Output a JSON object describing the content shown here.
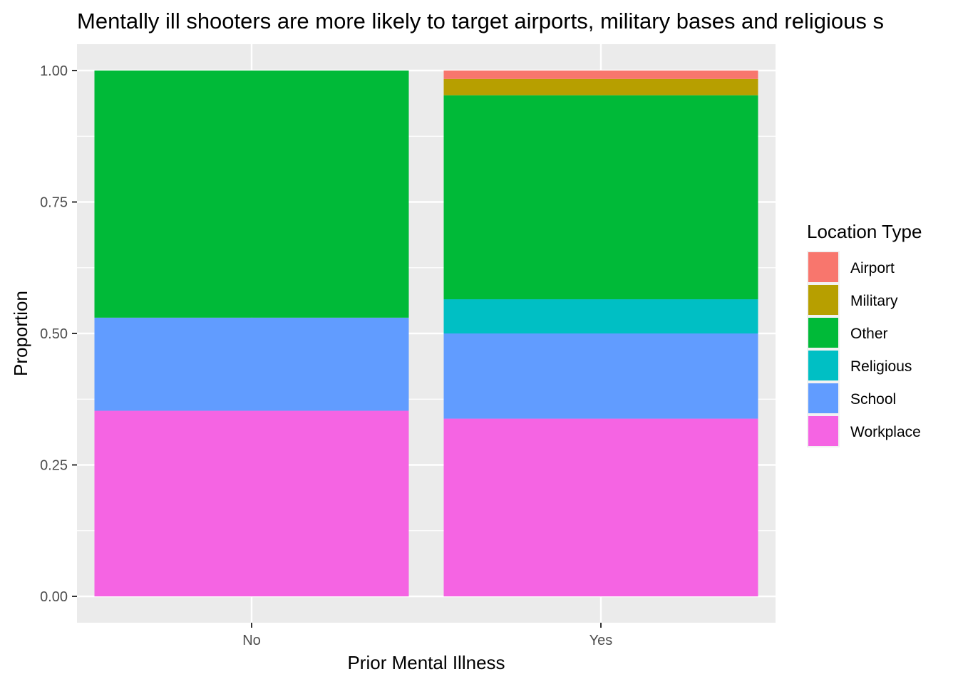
{
  "chart_data": {
    "type": "bar",
    "stacked": true,
    "title": "Mentally ill shooters are more likely to target airports, military bases and religious s",
    "xlabel": "Prior Mental Illness",
    "ylabel": "Proportion",
    "ylim": [
      0,
      1
    ],
    "yticks": [
      "0.00",
      "0.25",
      "0.50",
      "0.75",
      "1.00"
    ],
    "categories": [
      "No",
      "Yes"
    ],
    "series": [
      {
        "name": "Workplace",
        "color": "#F564E3",
        "values": [
          0.353,
          0.338
        ]
      },
      {
        "name": "School",
        "color": "#619CFF",
        "values": [
          0.177,
          0.162
        ]
      },
      {
        "name": "Religious",
        "color": "#00BFC4",
        "values": [
          0.0,
          0.065
        ]
      },
      {
        "name": "Other",
        "color": "#00BA38",
        "values": [
          0.47,
          0.388
        ]
      },
      {
        "name": "Military",
        "color": "#B79F00",
        "values": [
          0.0,
          0.031
        ]
      },
      {
        "name": "Airport",
        "color": "#F8766D",
        "values": [
          0.0,
          0.016
        ]
      }
    ],
    "legend": {
      "title": "Location Type",
      "position": "right",
      "entries": [
        "Airport",
        "Military",
        "Other",
        "Religious",
        "School",
        "Workplace"
      ]
    },
    "grid": true,
    "panel_background": "#EBEBEB"
  }
}
